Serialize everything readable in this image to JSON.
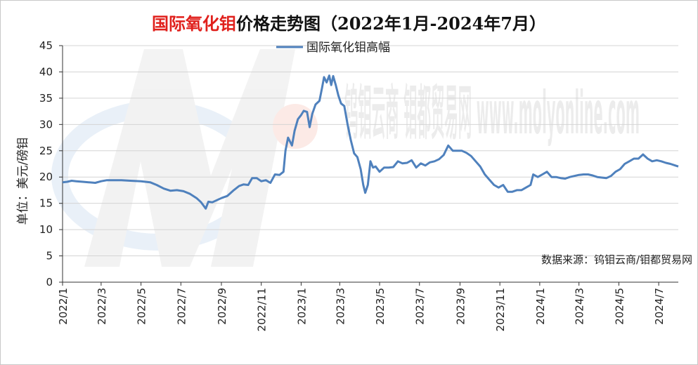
{
  "chart_data": {
    "type": "line",
    "title_red": "国际氧化钼",
    "title_rest": "价格走势图（2022年1月-2024年7月）",
    "ylabel": "单位：美元/磅钼",
    "legend": "国际氧化钼高幅",
    "legend_position": "top",
    "source_note": "数据来源：钨钼云商/钼都贸易网",
    "watermark": "钨钼云商 钼都贸易网 www.molyonline.com",
    "ylim": [
      0,
      45
    ],
    "yticks": [
      0,
      5,
      10,
      15,
      20,
      25,
      30,
      35,
      40,
      45
    ],
    "xlim": [
      "2022-01-01",
      "2024-07-31"
    ],
    "xtick_labels": [
      "2022/1",
      "2022/3",
      "2022/5",
      "2022/7",
      "2022/9",
      "2022/11",
      "2023/1",
      "2023/3",
      "2023/5",
      "2023/7",
      "2023/9",
      "2023/11",
      "2024/1",
      "2024/3",
      "2024/5",
      "2024/7"
    ],
    "xtick_dates": [
      "2022-01-01",
      "2022-03-01",
      "2022-05-01",
      "2022-07-01",
      "2022-09-01",
      "2022-11-01",
      "2023-01-01",
      "2023-03-01",
      "2023-05-01",
      "2023-07-01",
      "2023-09-01",
      "2023-11-01",
      "2024-01-01",
      "2024-03-01",
      "2024-05-01",
      "2024-07-01"
    ],
    "grid": "horizontal",
    "line_color": "#4f81bd",
    "series": [
      {
        "name": "国际氧化钼高幅",
        "points": [
          [
            "2022-01-01",
            19.0
          ],
          [
            "2022-01-08",
            19.1
          ],
          [
            "2022-01-15",
            19.3
          ],
          [
            "2022-01-22",
            19.2
          ],
          [
            "2022-02-01",
            19.1
          ],
          [
            "2022-02-10",
            19.0
          ],
          [
            "2022-02-20",
            18.9
          ],
          [
            "2022-03-01",
            19.2
          ],
          [
            "2022-03-10",
            19.4
          ],
          [
            "2022-03-20",
            19.4
          ],
          [
            "2022-04-01",
            19.4
          ],
          [
            "2022-04-15",
            19.3
          ],
          [
            "2022-05-01",
            19.2
          ],
          [
            "2022-05-15",
            19.0
          ],
          [
            "2022-05-25",
            18.5
          ],
          [
            "2022-06-05",
            17.8
          ],
          [
            "2022-06-15",
            17.4
          ],
          [
            "2022-06-25",
            17.5
          ],
          [
            "2022-07-05",
            17.3
          ],
          [
            "2022-07-15",
            16.8
          ],
          [
            "2022-07-25",
            16.0
          ],
          [
            "2022-08-01",
            15.2
          ],
          [
            "2022-08-05",
            14.5
          ],
          [
            "2022-08-08",
            14.0
          ],
          [
            "2022-08-12",
            15.3
          ],
          [
            "2022-08-18",
            15.2
          ],
          [
            "2022-08-25",
            15.6
          ],
          [
            "2022-09-01",
            16.0
          ],
          [
            "2022-09-10",
            16.4
          ],
          [
            "2022-09-20",
            17.5
          ],
          [
            "2022-09-28",
            18.3
          ],
          [
            "2022-10-05",
            18.6
          ],
          [
            "2022-10-12",
            18.5
          ],
          [
            "2022-10-18",
            19.8
          ],
          [
            "2022-10-25",
            19.8
          ],
          [
            "2022-11-01",
            19.2
          ],
          [
            "2022-11-08",
            19.4
          ],
          [
            "2022-11-15",
            18.9
          ],
          [
            "2022-11-22",
            20.5
          ],
          [
            "2022-11-29",
            20.4
          ],
          [
            "2022-12-05",
            21.0
          ],
          [
            "2022-12-08",
            25.0
          ],
          [
            "2022-12-12",
            27.5
          ],
          [
            "2022-12-18",
            26.0
          ],
          [
            "2022-12-22",
            28.8
          ],
          [
            "2022-12-27",
            31.0
          ],
          [
            "2023-01-01",
            31.8
          ],
          [
            "2023-01-05",
            32.6
          ],
          [
            "2023-01-10",
            32.4
          ],
          [
            "2023-01-14",
            29.5
          ],
          [
            "2023-01-18",
            32.0
          ],
          [
            "2023-01-23",
            33.8
          ],
          [
            "2023-01-29",
            34.5
          ],
          [
            "2023-02-02",
            37.0
          ],
          [
            "2023-02-05",
            39.0
          ],
          [
            "2023-02-09",
            38.0
          ],
          [
            "2023-02-13",
            39.3
          ],
          [
            "2023-02-16",
            37.5
          ],
          [
            "2023-02-19",
            39.2
          ],
          [
            "2023-02-23",
            37.5
          ],
          [
            "2023-02-27",
            35.5
          ],
          [
            "2023-03-03",
            34.0
          ],
          [
            "2023-03-08",
            33.5
          ],
          [
            "2023-03-13",
            30.0
          ],
          [
            "2023-03-18",
            27.0
          ],
          [
            "2023-03-23",
            24.5
          ],
          [
            "2023-03-28",
            23.8
          ],
          [
            "2023-04-02",
            21.5
          ],
          [
            "2023-04-06",
            18.5
          ],
          [
            "2023-04-09",
            17.0
          ],
          [
            "2023-04-13",
            18.5
          ],
          [
            "2023-04-17",
            23.0
          ],
          [
            "2023-04-21",
            21.8
          ],
          [
            "2023-04-25",
            22.0
          ],
          [
            "2023-05-01",
            21.0
          ],
          [
            "2023-05-08",
            21.8
          ],
          [
            "2023-05-15",
            21.8
          ],
          [
            "2023-05-22",
            21.9
          ],
          [
            "2023-05-29",
            23.0
          ],
          [
            "2023-06-05",
            22.6
          ],
          [
            "2023-06-12",
            22.7
          ],
          [
            "2023-06-19",
            23.2
          ],
          [
            "2023-06-26",
            21.8
          ],
          [
            "2023-07-03",
            22.6
          ],
          [
            "2023-07-10",
            22.2
          ],
          [
            "2023-07-17",
            22.8
          ],
          [
            "2023-07-24",
            23.0
          ],
          [
            "2023-07-31",
            23.4
          ],
          [
            "2023-08-07",
            24.2
          ],
          [
            "2023-08-14",
            26.0
          ],
          [
            "2023-08-21",
            25.0
          ],
          [
            "2023-08-28",
            25.0
          ],
          [
            "2023-09-04",
            25.0
          ],
          [
            "2023-09-11",
            24.6
          ],
          [
            "2023-09-18",
            24.0
          ],
          [
            "2023-09-25",
            23.0
          ],
          [
            "2023-10-02",
            22.0
          ],
          [
            "2023-10-09",
            20.5
          ],
          [
            "2023-10-16",
            19.5
          ],
          [
            "2023-10-23",
            18.5
          ],
          [
            "2023-10-30",
            18.0
          ],
          [
            "2023-11-06",
            18.5
          ],
          [
            "2023-11-13",
            17.2
          ],
          [
            "2023-11-20",
            17.2
          ],
          [
            "2023-11-27",
            17.5
          ],
          [
            "2023-12-04",
            17.5
          ],
          [
            "2023-12-11",
            18.0
          ],
          [
            "2023-12-18",
            18.5
          ],
          [
            "2023-12-22",
            20.5
          ],
          [
            "2023-12-29",
            20.0
          ],
          [
            "2024-01-05",
            20.5
          ],
          [
            "2024-01-12",
            21.0
          ],
          [
            "2024-01-19",
            20.0
          ],
          [
            "2024-01-26",
            20.0
          ],
          [
            "2024-02-02",
            19.8
          ],
          [
            "2024-02-09",
            19.7
          ],
          [
            "2024-02-16",
            20.0
          ],
          [
            "2024-02-23",
            20.2
          ],
          [
            "2024-03-01",
            20.4
          ],
          [
            "2024-03-08",
            20.5
          ],
          [
            "2024-03-15",
            20.5
          ],
          [
            "2024-03-22",
            20.3
          ],
          [
            "2024-03-29",
            20.0
          ],
          [
            "2024-04-05",
            19.9
          ],
          [
            "2024-04-12",
            19.8
          ],
          [
            "2024-04-19",
            20.2
          ],
          [
            "2024-04-26",
            21.0
          ],
          [
            "2024-05-03",
            21.5
          ],
          [
            "2024-05-10",
            22.5
          ],
          [
            "2024-05-17",
            23.0
          ],
          [
            "2024-05-24",
            23.5
          ],
          [
            "2024-05-31",
            23.5
          ],
          [
            "2024-06-07",
            24.3
          ],
          [
            "2024-06-14",
            23.5
          ],
          [
            "2024-06-21",
            23.0
          ],
          [
            "2024-06-28",
            23.2
          ],
          [
            "2024-07-05",
            23.0
          ],
          [
            "2024-07-12",
            22.7
          ],
          [
            "2024-07-19",
            22.5
          ],
          [
            "2024-07-26",
            22.2
          ],
          [
            "2024-07-31",
            22.0
          ]
        ]
      }
    ]
  }
}
